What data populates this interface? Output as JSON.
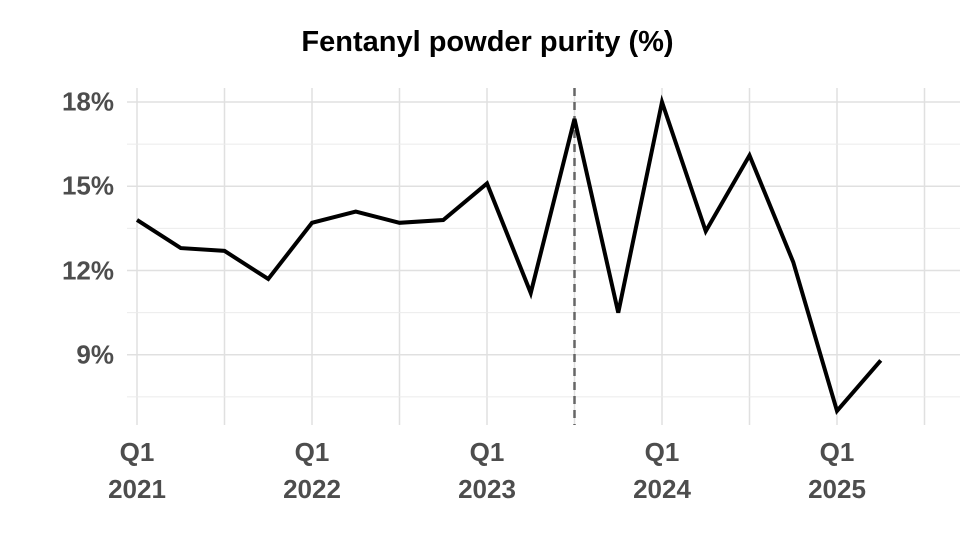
{
  "chart_data": {
    "type": "line",
    "title": "Fentanyl powder purity (%)",
    "categories": [
      "Q1\n2021",
      null,
      null,
      null,
      "Q1\n2022",
      null,
      null,
      null,
      "Q1\n2023",
      null,
      null,
      null,
      "Q1\n2024",
      null,
      null,
      null,
      "Q1\n2025",
      null
    ],
    "series": [
      {
        "color": "#000000",
        "values": [
          13.8,
          12.8,
          12.7,
          11.7,
          13.7,
          14.1,
          13.7,
          13.8,
          15.1,
          11.2,
          17.4,
          10.5,
          18.0,
          13.4,
          16.1,
          12.3,
          7.0,
          8.8
        ]
      }
    ],
    "ylim": [
      6.5,
      18.5
    ],
    "yticks": [
      {
        "value": 9,
        "label": "9%"
      },
      {
        "value": 12,
        "label": "12%"
      },
      {
        "value": 15,
        "label": "15%"
      },
      {
        "value": 18,
        "label": "18%"
      }
    ],
    "y_minor_ticks": [
      7.5,
      10.5,
      13.5,
      16.5
    ],
    "vline_x": 10,
    "grid": true
  }
}
